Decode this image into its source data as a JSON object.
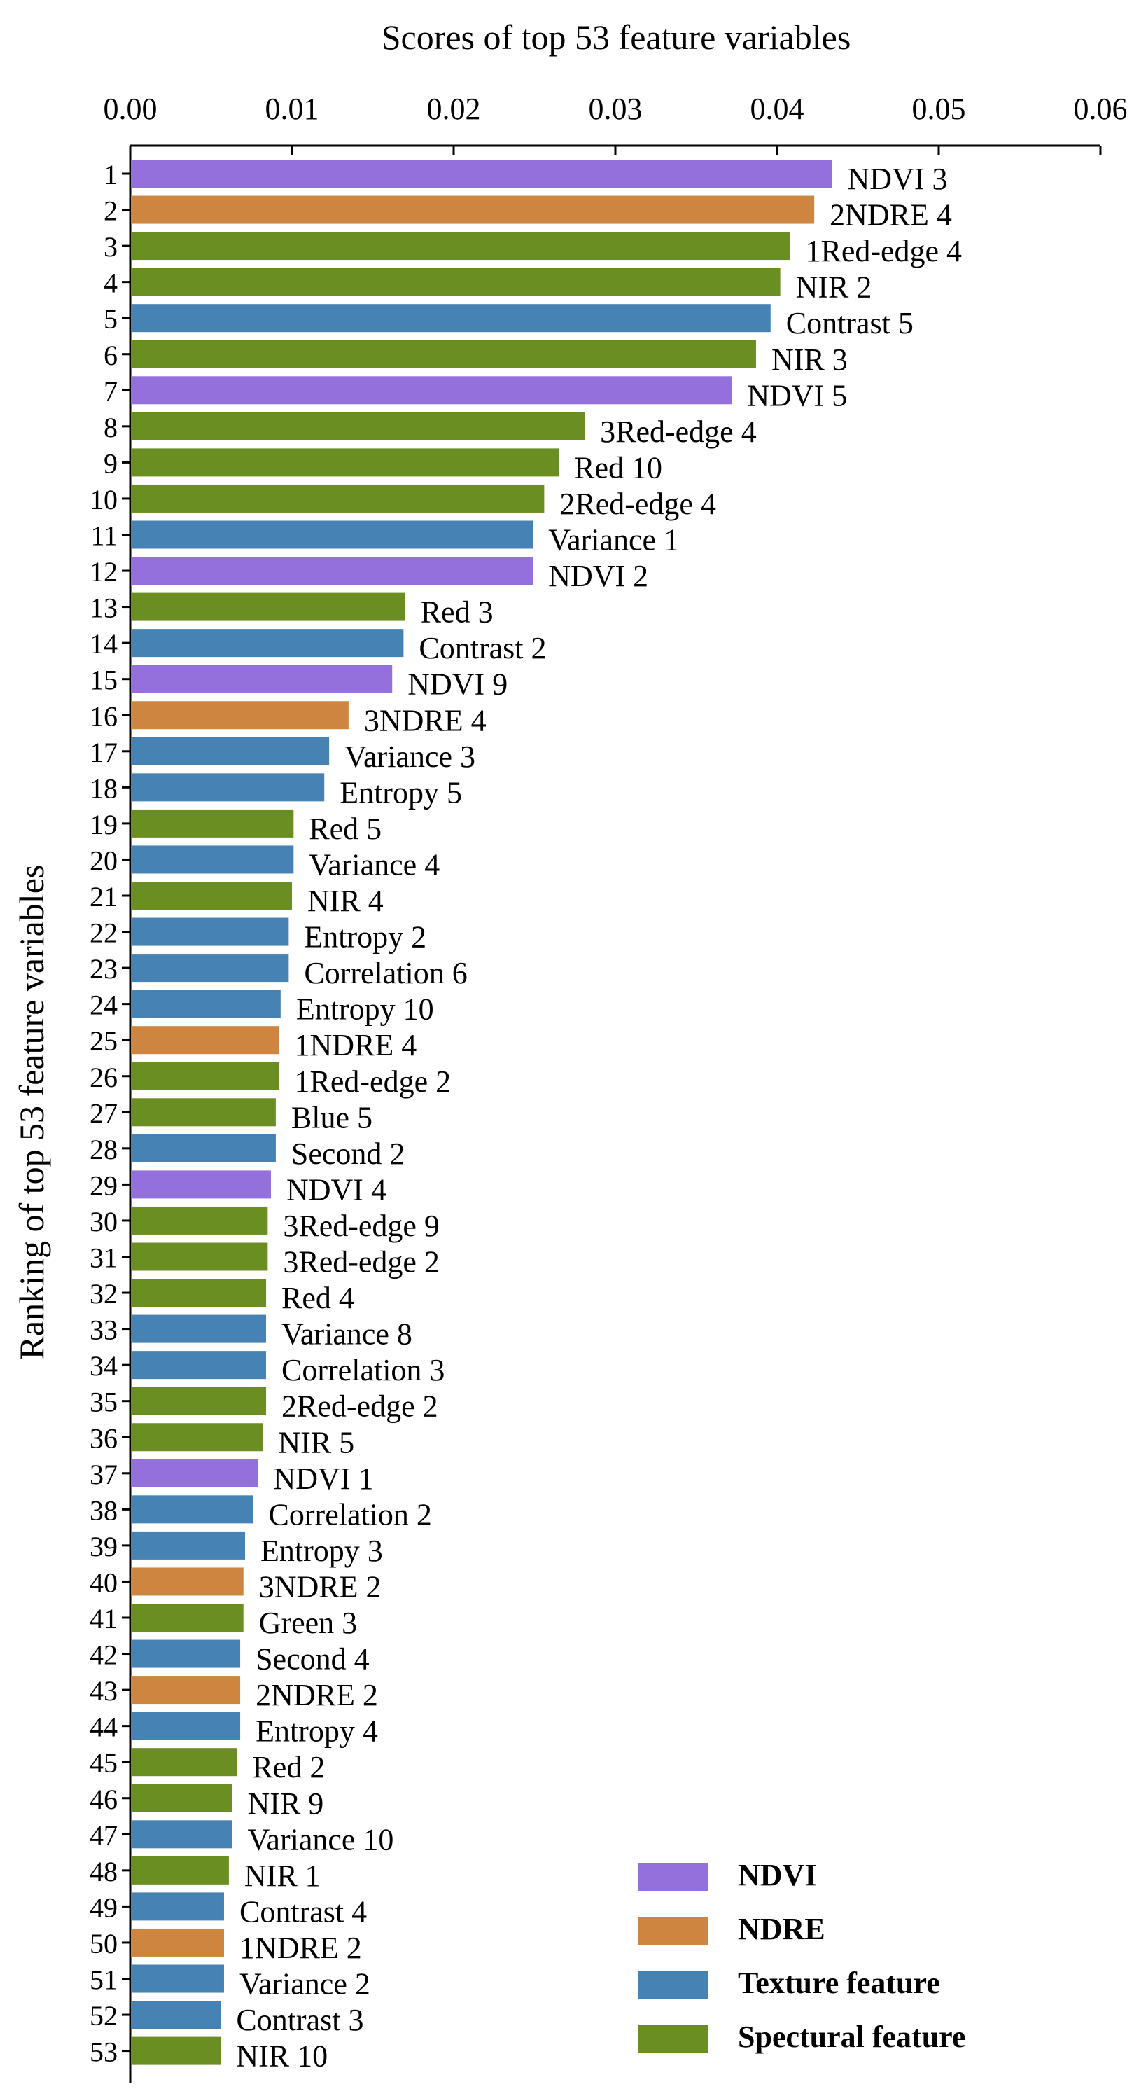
{
  "chart_data": {
    "type": "bar",
    "orientation": "horizontal",
    "title": "Scores of top 53 feature variables",
    "ylabel": "Ranking of top 53 feature variables",
    "xlabel": "",
    "xlim": [
      0,
      0.06
    ],
    "x_ticks": [
      "0.00",
      "0.01",
      "0.02",
      "0.03",
      "0.04",
      "0.05",
      "0.06"
    ],
    "x_axis_position": "top",
    "grid": false,
    "legend_position": "bottom-right",
    "legend": [
      {
        "name": "NDVI",
        "color": "#9370DB"
      },
      {
        "name": "NDRE",
        "color": "#CD853F"
      },
      {
        "name": "Texture feature",
        "color": "#4682B4"
      },
      {
        "name": "Spectural feature",
        "color": "#6B8E23"
      }
    ],
    "bars": [
      {
        "rank": "1",
        "label": "NDVI 3",
        "value": 0.0434,
        "group": "NDVI"
      },
      {
        "rank": "2",
        "label": "2NDRE 4",
        "value": 0.0423,
        "group": "NDRE"
      },
      {
        "rank": "3",
        "label": "1Red-edge 4",
        "value": 0.0408,
        "group": "Spectural feature"
      },
      {
        "rank": "4",
        "label": "NIR 2",
        "value": 0.0402,
        "group": "Spectural feature"
      },
      {
        "rank": "5",
        "label": "Contrast 5",
        "value": 0.0396,
        "group": "Texture feature"
      },
      {
        "rank": "6",
        "label": "NIR 3",
        "value": 0.0387,
        "group": "Spectural feature"
      },
      {
        "rank": "7",
        "label": "NDVI 5",
        "value": 0.0372,
        "group": "NDVI"
      },
      {
        "rank": "8",
        "label": "3Red-edge 4",
        "value": 0.0281,
        "group": "Spectural feature"
      },
      {
        "rank": "9",
        "label": "Red 10",
        "value": 0.0265,
        "group": "Spectural feature"
      },
      {
        "rank": "10",
        "label": "2Red-edge 4",
        "value": 0.0256,
        "group": "Spectural feature"
      },
      {
        "rank": "11",
        "label": "Variance 1",
        "value": 0.0249,
        "group": "Texture feature"
      },
      {
        "rank": "12",
        "label": "NDVI 2",
        "value": 0.0249,
        "group": "NDVI"
      },
      {
        "rank": "13",
        "label": "Red 3",
        "value": 0.017,
        "group": "Spectural feature"
      },
      {
        "rank": "14",
        "label": "Contrast 2",
        "value": 0.0169,
        "group": "Texture feature"
      },
      {
        "rank": "15",
        "label": "NDVI 9",
        "value": 0.0162,
        "group": "NDVI"
      },
      {
        "rank": "16",
        "label": "3NDRE 4",
        "value": 0.0135,
        "group": "NDRE"
      },
      {
        "rank": "17",
        "label": "Variance 3",
        "value": 0.0123,
        "group": "Texture feature"
      },
      {
        "rank": "18",
        "label": "Entropy 5",
        "value": 0.012,
        "group": "Texture feature"
      },
      {
        "rank": "19",
        "label": "Red 5",
        "value": 0.0101,
        "group": "Spectural feature"
      },
      {
        "rank": "20",
        "label": "Variance 4",
        "value": 0.0101,
        "group": "Texture feature"
      },
      {
        "rank": "21",
        "label": "NIR 4",
        "value": 0.01,
        "group": "Spectural feature"
      },
      {
        "rank": "22",
        "label": "Entropy 2",
        "value": 0.0098,
        "group": "Texture feature"
      },
      {
        "rank": "23",
        "label": "Correlation 6",
        "value": 0.0098,
        "group": "Texture feature"
      },
      {
        "rank": "24",
        "label": "Entropy 10",
        "value": 0.0093,
        "group": "Texture feature"
      },
      {
        "rank": "25",
        "label": "1NDRE 4",
        "value": 0.0092,
        "group": "NDRE"
      },
      {
        "rank": "26",
        "label": "1Red-edge 2",
        "value": 0.0092,
        "group": "Spectural feature"
      },
      {
        "rank": "27",
        "label": "Blue 5",
        "value": 0.009,
        "group": "Spectural feature"
      },
      {
        "rank": "28",
        "label": "Second 2",
        "value": 0.009,
        "group": "Texture feature"
      },
      {
        "rank": "29",
        "label": "NDVI 4",
        "value": 0.0087,
        "group": "NDVI"
      },
      {
        "rank": "30",
        "label": "3Red-edge 9",
        "value": 0.0085,
        "group": "Spectural feature"
      },
      {
        "rank": "31",
        "label": "3Red-edge 2",
        "value": 0.0085,
        "group": "Spectural feature"
      },
      {
        "rank": "32",
        "label": "Red 4",
        "value": 0.0084,
        "group": "Spectural feature"
      },
      {
        "rank": "33",
        "label": "Variance 8",
        "value": 0.0084,
        "group": "Texture feature"
      },
      {
        "rank": "34",
        "label": "Correlation 3",
        "value": 0.0084,
        "group": "Texture feature"
      },
      {
        "rank": "35",
        "label": "2Red-edge 2",
        "value": 0.0084,
        "group": "Spectural feature"
      },
      {
        "rank": "36",
        "label": "NIR 5",
        "value": 0.0082,
        "group": "Spectural feature"
      },
      {
        "rank": "37",
        "label": "NDVI 1",
        "value": 0.0079,
        "group": "NDVI"
      },
      {
        "rank": "38",
        "label": "Correlation 2",
        "value": 0.0076,
        "group": "Texture feature"
      },
      {
        "rank": "39",
        "label": "Entropy 3",
        "value": 0.0071,
        "group": "Texture feature"
      },
      {
        "rank": "40",
        "label": "3NDRE 2",
        "value": 0.007,
        "group": "NDRE"
      },
      {
        "rank": "41",
        "label": "Green 3",
        "value": 0.007,
        "group": "Spectural feature"
      },
      {
        "rank": "42",
        "label": "Second 4",
        "value": 0.0068,
        "group": "Texture feature"
      },
      {
        "rank": "43",
        "label": "2NDRE 2",
        "value": 0.0068,
        "group": "NDRE"
      },
      {
        "rank": "44",
        "label": "Entropy 4",
        "value": 0.0068,
        "group": "Texture feature"
      },
      {
        "rank": "45",
        "label": "Red 2",
        "value": 0.0066,
        "group": "Spectural feature"
      },
      {
        "rank": "46",
        "label": "NIR 9",
        "value": 0.0063,
        "group": "Spectural feature"
      },
      {
        "rank": "47",
        "label": "Variance 10",
        "value": 0.0063,
        "group": "Texture feature"
      },
      {
        "rank": "48",
        "label": "NIR 1",
        "value": 0.0061,
        "group": "Spectural feature"
      },
      {
        "rank": "49",
        "label": "Contrast 4",
        "value": 0.0058,
        "group": "Texture feature"
      },
      {
        "rank": "50",
        "label": "1NDRE 2",
        "value": 0.0058,
        "group": "NDRE"
      },
      {
        "rank": "51",
        "label": "Variance 2",
        "value": 0.0058,
        "group": "Texture feature"
      },
      {
        "rank": "52",
        "label": "Contrast 3",
        "value": 0.0056,
        "group": "Texture feature"
      },
      {
        "rank": "53",
        "label": "NIR 10",
        "value": 0.0056,
        "group": "Spectural feature"
      }
    ]
  }
}
